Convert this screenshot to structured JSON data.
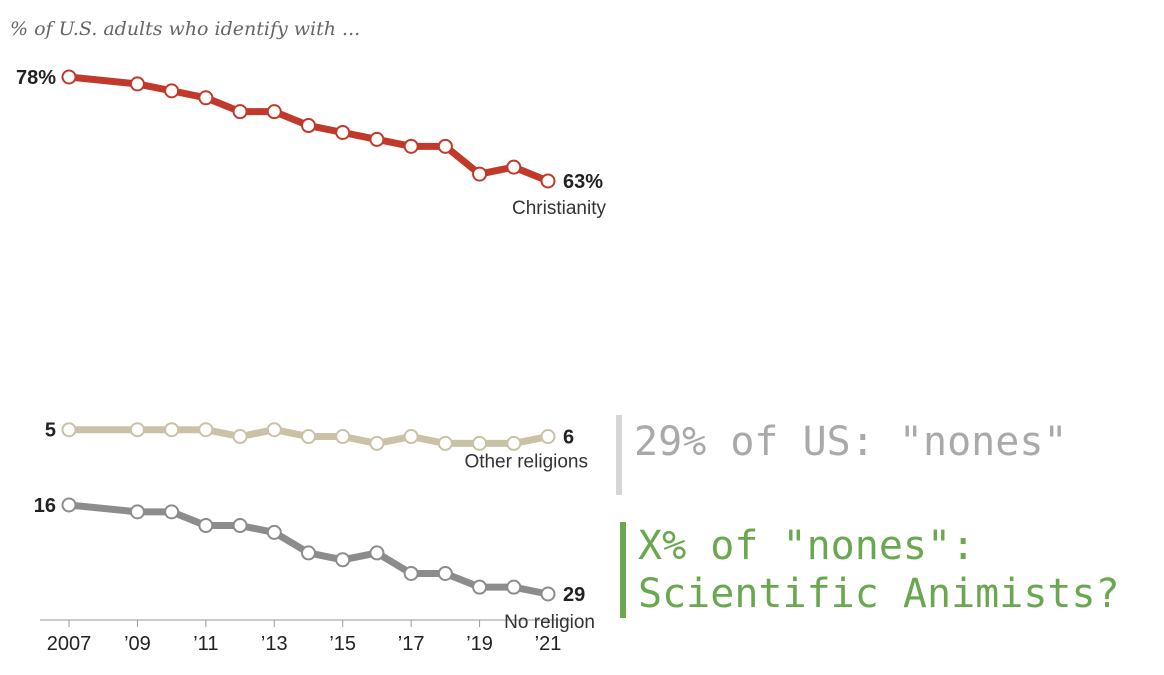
{
  "subtitle": "% of U.S. adults who identify with ...",
  "chart_data": {
    "type": "line",
    "x": [
      2007,
      2009,
      2010,
      2011,
      2012,
      2013,
      2014,
      2015,
      2016,
      2017,
      2018,
      2019,
      2020,
      2021
    ],
    "x_tick_labels": [
      "2007",
      "’09",
      "’11",
      "’13",
      "’15",
      "’17",
      "’19",
      "’21"
    ],
    "x_tick_values": [
      2007,
      2009,
      2011,
      2013,
      2015,
      2017,
      2019,
      2021
    ],
    "series": [
      {
        "name": "Christianity",
        "color": "#c0392b",
        "values": [
          78,
          77,
          76,
          75,
          73,
          73,
          71,
          70,
          69,
          68,
          68,
          64,
          65,
          63
        ],
        "start_label": "78%",
        "end_label": "63%"
      },
      {
        "name": "No religion",
        "color": "#8c8c8c",
        "values": [
          16,
          17,
          17,
          19,
          19,
          20,
          23,
          24,
          23,
          26,
          26,
          28,
          28,
          29
        ],
        "start_label": "16",
        "end_label": "29"
      },
      {
        "name": "Other religions",
        "color": "#c9c2a6",
        "values": [
          5,
          5,
          5,
          5,
          6,
          5,
          6,
          6,
          7,
          6,
          7,
          7,
          7,
          6
        ],
        "start_label": "5",
        "end_label": "6"
      }
    ]
  },
  "callouts": {
    "gray": "29% of US: \"nones\"",
    "green_line1": "X% of \"nones\":",
    "green_line2": "Scientific Animists?"
  }
}
